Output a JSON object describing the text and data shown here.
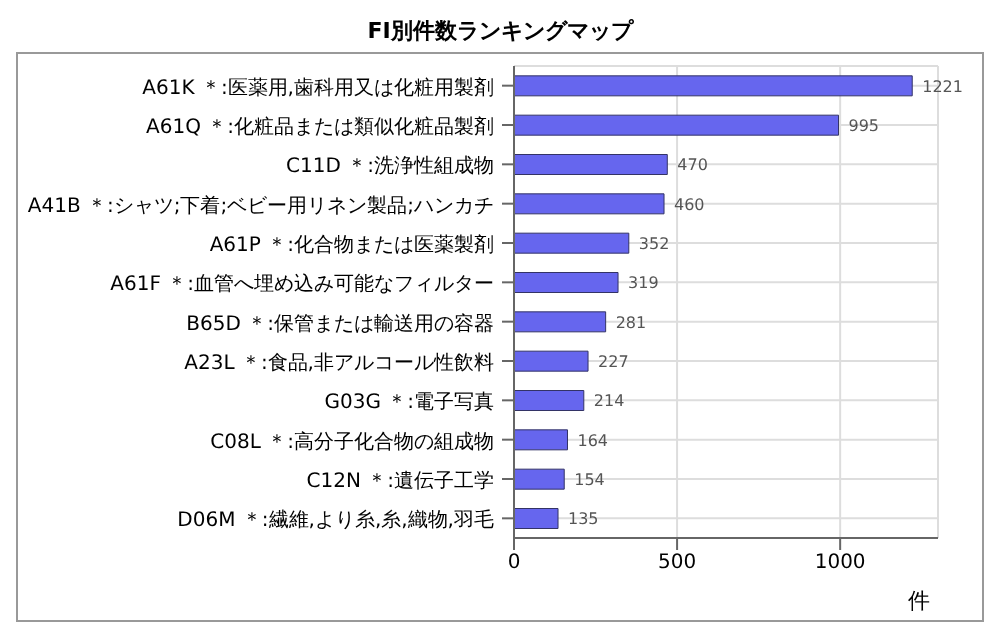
{
  "chart_data": {
    "type": "bar",
    "orientation": "horizontal",
    "title": "FI別件数ランキングマップ",
    "xlabel": "件",
    "categories": [
      "A61K ＊:医薬用,歯科用又は化粧用製剤",
      "A61Q ＊:化粧品または類似化粧品製剤",
      "C11D ＊:洗浄性組成物",
      "A41B ＊:シャツ;下着;ベビー用リネン製品;ハンカチ",
      "A61P ＊:化合物または医薬製剤",
      "A61F ＊:血管へ埋め込み可能なフィルター",
      "B65D ＊:保管または輸送用の容器",
      "A23L ＊:食品,非アルコール性飲料",
      "G03G ＊:電子写真",
      "C08L ＊:高分子化合物の組成物",
      "C12N ＊:遺伝子工学",
      "D06M ＊:繊維,より糸,糸,織物,羽毛"
    ],
    "values": [
      1221,
      995,
      470,
      460,
      352,
      319,
      281,
      227,
      214,
      164,
      154,
      135
    ],
    "color": "#6666ee",
    "xlim": [
      0,
      1300
    ],
    "xticks": [
      0,
      500,
      1000
    ],
    "grid": true,
    "data_labels": true
  }
}
